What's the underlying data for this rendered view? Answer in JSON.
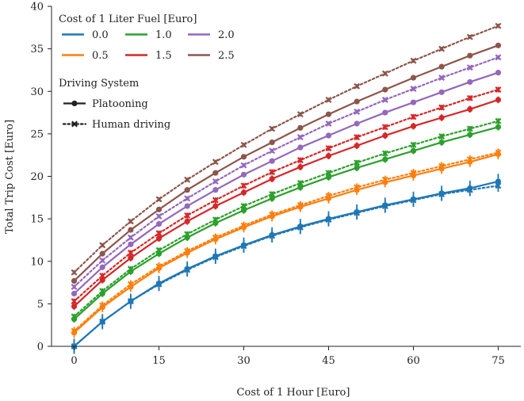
{
  "chart_data": {
    "type": "line",
    "xlabel": "Cost of 1 Hour [Euro]",
    "ylabel": "Total Trip Cost [Euro]",
    "xlim": [
      -4,
      79
    ],
    "ylim": [
      0,
      40
    ],
    "xticks": [
      0,
      15,
      30,
      45,
      60,
      75
    ],
    "yticks": [
      0,
      5,
      10,
      15,
      20,
      25,
      30,
      35,
      40
    ],
    "grid": false,
    "legend": {
      "placement": "top-left",
      "fuel_title": "Cost of 1 Liter Fuel [Euro]",
      "system_title": "Driving System",
      "platooning_label": "Platooning",
      "human_label": "Human driving"
    },
    "x": [
      0,
      5,
      10,
      15,
      20,
      25,
      30,
      35,
      40,
      45,
      50,
      55,
      60,
      65,
      70,
      75
    ],
    "series": [
      {
        "name": "0.0",
        "color": "#1f77b4",
        "platooning": [
          0.0,
          2.9,
          5.3,
          7.4,
          9.1,
          10.6,
          11.9,
          13.1,
          14.1,
          15.0,
          15.8,
          16.6,
          17.3,
          18.0,
          18.6,
          19.4
        ],
        "human": [
          0.0,
          2.9,
          5.3,
          7.3,
          9.0,
          10.5,
          11.8,
          13.0,
          14.0,
          14.9,
          15.7,
          16.5,
          17.2,
          17.9,
          18.4,
          18.9
        ],
        "error": 0.9
      },
      {
        "name": "0.5",
        "color": "#ff7f0e",
        "platooning": [
          1.6,
          4.6,
          7.0,
          9.2,
          11.0,
          12.6,
          14.0,
          15.3,
          16.4,
          17.4,
          18.4,
          19.3,
          20.1,
          20.9,
          21.7,
          22.6
        ],
        "human": [
          1.8,
          4.8,
          7.3,
          9.4,
          11.2,
          12.8,
          14.2,
          15.5,
          16.6,
          17.7,
          18.7,
          19.6,
          20.4,
          21.2,
          22.0,
          22.8
        ],
        "error": 0.6
      },
      {
        "name": "1.0",
        "color": "#2ca02c",
        "platooning": [
          3.2,
          6.2,
          8.8,
          10.9,
          12.8,
          14.5,
          16.0,
          17.4,
          18.7,
          19.9,
          21.0,
          22.0,
          23.0,
          24.0,
          24.9,
          25.8
        ],
        "human": [
          3.5,
          6.5,
          9.1,
          11.3,
          13.2,
          14.9,
          16.5,
          17.9,
          19.2,
          20.4,
          21.6,
          22.7,
          23.7,
          24.7,
          25.6,
          26.5
        ],
        "error": 0.4
      },
      {
        "name": "1.5",
        "color": "#d62728",
        "platooning": [
          4.7,
          7.8,
          10.4,
          12.7,
          14.7,
          16.5,
          18.1,
          19.7,
          21.1,
          22.4,
          23.6,
          24.8,
          25.9,
          26.9,
          27.9,
          29.0
        ],
        "human": [
          5.3,
          8.3,
          11.0,
          13.3,
          15.4,
          17.2,
          18.9,
          20.5,
          21.9,
          23.3,
          24.6,
          25.8,
          27.0,
          28.1,
          29.2,
          30.2
        ],
        "error": 0.4
      },
      {
        "name": "2.0",
        "color": "#9467bd",
        "platooning": [
          6.2,
          9.3,
          12.0,
          14.4,
          16.5,
          18.4,
          20.2,
          21.8,
          23.4,
          24.8,
          26.2,
          27.5,
          28.7,
          29.9,
          31.1,
          32.2
        ],
        "human": [
          7.0,
          10.1,
          12.8,
          15.3,
          17.4,
          19.4,
          21.3,
          23.0,
          24.6,
          26.2,
          27.6,
          29.0,
          30.3,
          31.6,
          32.8,
          34.0
        ],
        "error": 0.3
      },
      {
        "name": "2.5",
        "color": "#8c564b",
        "platooning": [
          7.7,
          10.9,
          13.7,
          16.1,
          18.4,
          20.4,
          22.3,
          24.0,
          25.7,
          27.3,
          28.8,
          30.2,
          31.6,
          32.9,
          34.2,
          35.4
        ],
        "human": [
          8.7,
          11.9,
          14.7,
          17.3,
          19.6,
          21.7,
          23.7,
          25.6,
          27.3,
          29.0,
          30.6,
          32.1,
          33.6,
          35.0,
          36.4,
          37.7
        ],
        "error": 0.3
      }
    ]
  }
}
